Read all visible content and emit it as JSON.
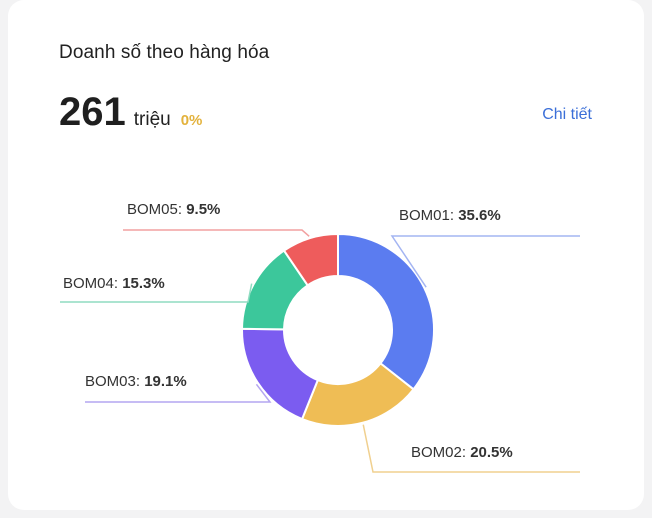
{
  "header": {
    "title": "Doanh số theo hàng hóa",
    "kpi_value": "261",
    "kpi_unit": "triệu",
    "kpi_change": "0%",
    "detail_link": "Chi tiết"
  },
  "chart_data": {
    "type": "pie",
    "variant": "donut",
    "categories": [
      "BOM01",
      "BOM02",
      "BOM03",
      "BOM04",
      "BOM05"
    ],
    "values": [
      35.6,
      20.5,
      19.1,
      15.3,
      9.5
    ],
    "value_labels": [
      "35.6%",
      "20.5%",
      "19.1%",
      "15.3%",
      "9.5%"
    ],
    "colors": [
      "#5b7cf0",
      "#efbd55",
      "#7b5cf0",
      "#3cc79b",
      "#ee5c5c"
    ],
    "line_colors": [
      "#a4b5f2",
      "#f0d08f",
      "#b4a6f0",
      "#8fdcc1",
      "#f2a0a0"
    ],
    "legend": "none"
  }
}
